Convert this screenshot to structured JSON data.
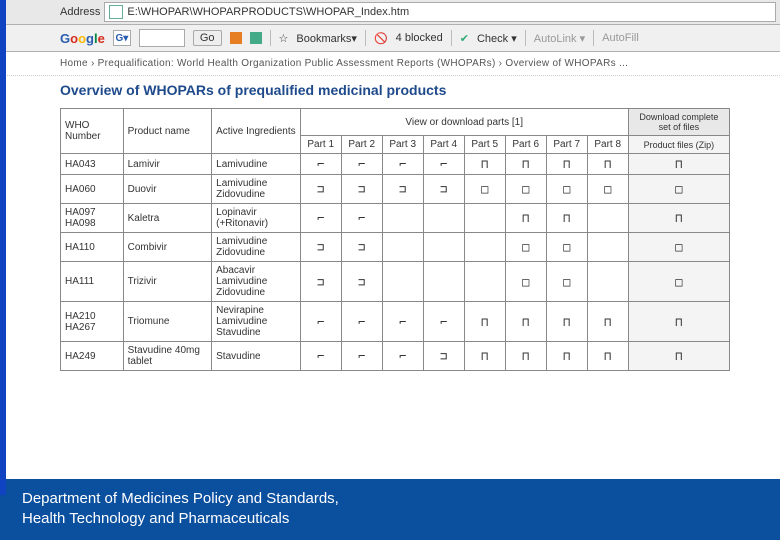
{
  "toolbar": {
    "address_label": "Address",
    "url": "E:\\WHOPAR\\WHOPARPRODUCTS\\WHOPAR_Index.htm",
    "go_label": "Go",
    "bookmarks_label": "Bookmarks▾",
    "blocked_label": "4 blocked",
    "check_label": "Check ▾",
    "autolink_label": "AutoLink ▾",
    "autofill_label": "AutoFill"
  },
  "breadcrumb": "Home › Prequalification: World Health Organization Public Assessment Reports (WHOPARs) › Overview of WHOPARs ...",
  "heading": "Overview of WHOPARs of prequalified medicinal products",
  "columns": {
    "who": "WHO Number",
    "product": "Product name",
    "ingredients": "Active Ingredients",
    "view": "View or download parts [1]",
    "download": "Download complete set of files",
    "zip": "Product files (Zip)",
    "parts": [
      "Part 1",
      "Part 2",
      "Part 3",
      "Part 4",
      "Part 5",
      "Part 6",
      "Part 7",
      "Part 8"
    ]
  },
  "rows": [
    {
      "who": "HA043",
      "product": "Lamivir",
      "ing": "Lamivudine",
      "parts": [
        "⌐",
        "⌐",
        "⌐",
        "⌐",
        "⊓",
        "⊓",
        "⊓",
        "⊓"
      ],
      "zip": "⊓"
    },
    {
      "who": "HA060",
      "product": "Duovir",
      "ing": "Lamivudine\nZidovudine",
      "parts": [
        "⊐",
        "⊐",
        "⊐",
        "⊐",
        "□",
        "□",
        "□",
        "□"
      ],
      "zip": "□"
    },
    {
      "who": "HA097 HA098",
      "product": "Kaletra",
      "ing": "Lopinavir (+Ritonavir)",
      "parts": [
        "⌐",
        "⌐",
        "",
        "",
        "",
        "⊓",
        "⊓",
        ""
      ],
      "zip": "⊓"
    },
    {
      "who": "HA110",
      "product": "Combivir",
      "ing": "Lamivudine\nZidovudine",
      "parts": [
        "⊐",
        "⊐",
        "",
        "",
        "",
        "□",
        "□",
        ""
      ],
      "zip": "□"
    },
    {
      "who": "HA111",
      "product": "Trizivir",
      "ing": "Abacavir\nLamivudine\nZidovudine",
      "parts": [
        "⊐",
        "⊐",
        "",
        "",
        "",
        "□",
        "□",
        ""
      ],
      "zip": "□"
    },
    {
      "who": "HA210 HA267",
      "product": "Triomune",
      "ing": "Nevirapine\nLamivudine\nStavudine",
      "parts": [
        "⌐",
        "⌐",
        "⌐",
        "⌐",
        "⊓",
        "⊓",
        "⊓",
        "⊓"
      ],
      "zip": "⊓"
    },
    {
      "who": "HA249",
      "product": "Stavudine 40mg tablet",
      "ing": "Stavudine",
      "parts": [
        "⌐",
        "⌐",
        "⌐",
        "⊐",
        "⊓",
        "⊓",
        "⊓",
        "⊓"
      ],
      "zip": "⊓"
    }
  ],
  "footer": {
    "line1": "Department of Medicines Policy and Standards,",
    "line2": "Health Technology and Pharmaceuticals"
  },
  "colors": {
    "accent": "#1043c2",
    "footer_bg": "#0b4f9f",
    "heading": "#1e4a8c",
    "border": "#888888"
  }
}
